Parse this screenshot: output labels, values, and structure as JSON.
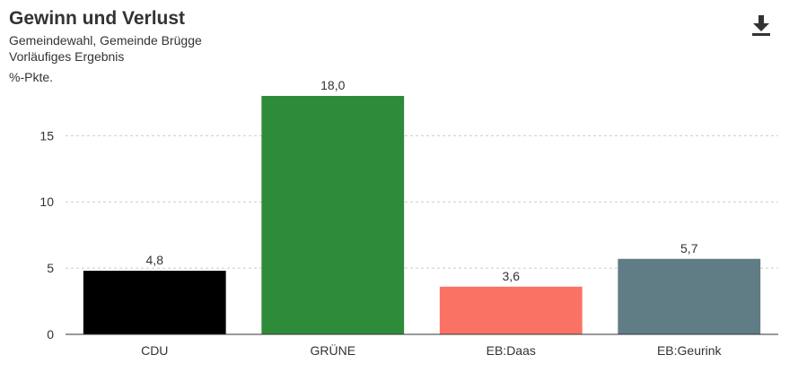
{
  "header": {
    "title": "Gewinn und Verlust",
    "subtitle1": "Gemeindewahl, Gemeinde Brügge",
    "subtitle2": "Vorläufiges Ergebnis",
    "download_icon": "download-icon"
  },
  "chart_data": {
    "type": "bar",
    "title": "Gewinn und Verlust",
    "ylabel": "%-Pkte.",
    "xlabel": "",
    "categories": [
      "CDU",
      "GRÜNE",
      "EB:Daas",
      "EB:Geurink"
    ],
    "values": [
      4.8,
      18.0,
      3.6,
      5.7
    ],
    "value_labels": [
      "4,8",
      "18,0",
      "3,6",
      "5,7"
    ],
    "colors": [
      "#000000",
      "#2e8b39",
      "#fa7264",
      "#607c85"
    ],
    "ylim": [
      0,
      18.0
    ],
    "yticks": [
      0,
      5,
      10,
      15
    ],
    "grid": true,
    "legend": "none"
  }
}
